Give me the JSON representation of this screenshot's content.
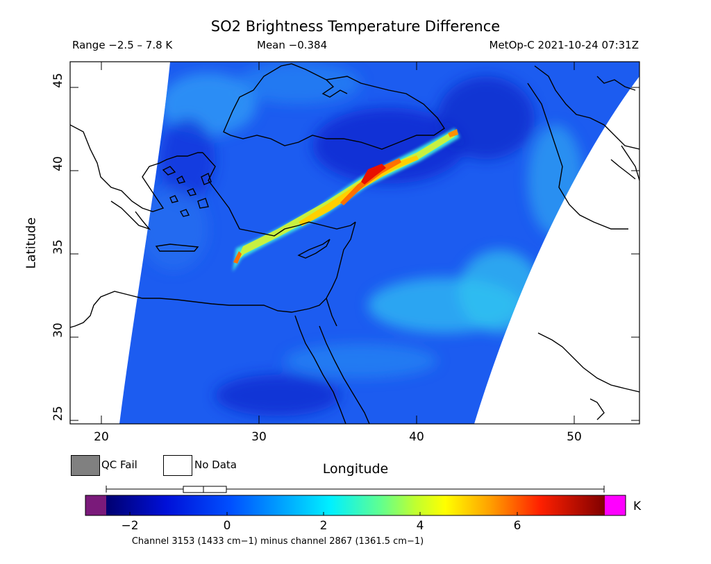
{
  "title": "SO2 Brightness Temperature Difference",
  "range": "Range −2.5 – 7.8 K",
  "mean": "Mean −0.384",
  "satellite": "MetOp-C 2021-10-24 07:31Z",
  "axis": {
    "ylabel": "Latitude",
    "xlabel": "Longitude",
    "lat_ticks": [
      "25",
      "30",
      "35",
      "40",
      "45"
    ],
    "lon_ticks": [
      "20",
      "30",
      "40",
      "50"
    ],
    "lon_range": [
      18.2,
      53.7
    ],
    "lat_range": [
      24.6,
      46.7
    ]
  },
  "legend": {
    "qc_fail": "QC Fail",
    "no_data": "No Data",
    "qc_color": "#808080"
  },
  "colorbar": {
    "ticks": [
      "−2",
      "0",
      "2",
      "4",
      "6"
    ],
    "tick_values": [
      -2,
      0,
      2,
      4,
      6
    ],
    "min": -2.5,
    "max": 7.8,
    "units": "K",
    "under_color": "#7a1a7a",
    "over_color": "#ff00ff",
    "boxplot": {
      "min": -2.5,
      "q1": -0.9,
      "median": -0.5,
      "q3": 0.0,
      "max": 7.8
    }
  },
  "channel_note": "Channel 3153 (1433 cm−1) minus channel 2867 (1361.5 cm−1)"
}
